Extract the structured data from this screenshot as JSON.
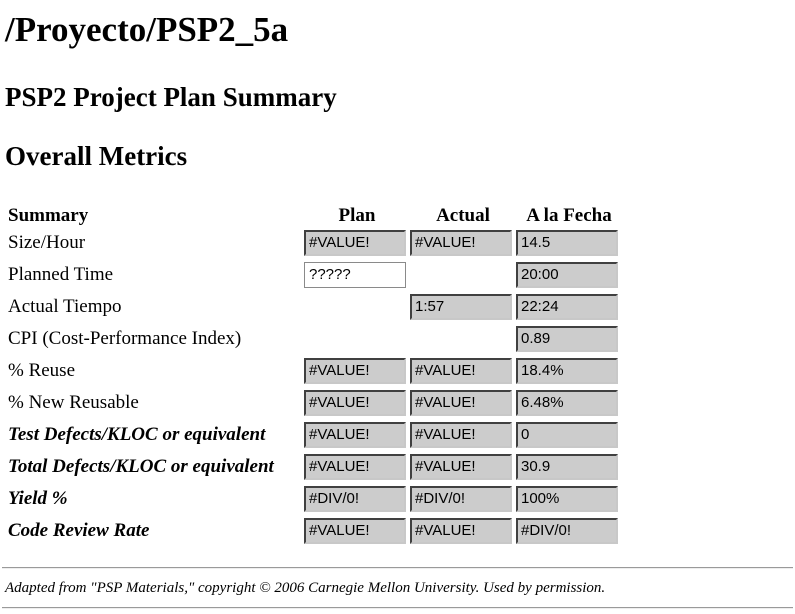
{
  "page": {
    "title": "/Proyecto/PSP2_5a",
    "subtitle": "PSP2 Project Plan Summary",
    "section_title": "Overall Metrics"
  },
  "table": {
    "headers": {
      "summary": "Summary",
      "plan": "Plan",
      "actual": "Actual",
      "to_date": "A la Fecha"
    },
    "rows": [
      {
        "label": "Size/Hour",
        "emphasis": false,
        "plan": "#VALUE!",
        "actual": "#VALUE!",
        "to_date": "14.5"
      },
      {
        "label": "Planned Time",
        "emphasis": false,
        "plan": "?????",
        "actual": null,
        "to_date": "20:00"
      },
      {
        "label": "Actual Tiempo",
        "emphasis": false,
        "plan": null,
        "actual": "1:57",
        "to_date": "22:24"
      },
      {
        "label": "CPI (Cost-Performance Index)",
        "emphasis": false,
        "plan": null,
        "actual": null,
        "to_date": "0.89"
      },
      {
        "label": "% Reuse",
        "emphasis": false,
        "plan": "#VALUE!",
        "actual": "#VALUE!",
        "to_date": "18.4%"
      },
      {
        "label": "% New Reusable",
        "emphasis": false,
        "plan": "#VALUE!",
        "actual": "#VALUE!",
        "to_date": "6.48%"
      },
      {
        "label": "Test Defects/KLOC or equivalent",
        "emphasis": true,
        "plan": "#VALUE!",
        "actual": "#VALUE!",
        "to_date": "0"
      },
      {
        "label": "Total Defects/KLOC or equivalent",
        "emphasis": true,
        "plan": "#VALUE!",
        "actual": "#VALUE!",
        "to_date": "30.9"
      },
      {
        "label": "Yield %",
        "emphasis": true,
        "plan": "#DIV/0!",
        "actual": "#DIV/0!",
        "to_date": "100%"
      },
      {
        "label": "Code Review Rate",
        "emphasis": true,
        "plan": "#VALUE!",
        "actual": "#VALUE!",
        "to_date": "#DIV/0!"
      }
    ]
  },
  "editable_cells": [
    "1.plan"
  ],
  "footer": {
    "text": "Adapted from \"PSP Materials,\" copyright © 2006 Carnegie Mellon University. Used by permission."
  },
  "colors": {
    "readonly_field_bg": "#cccccc",
    "editable_field_bg": "#ffffff",
    "text": "#000000"
  }
}
